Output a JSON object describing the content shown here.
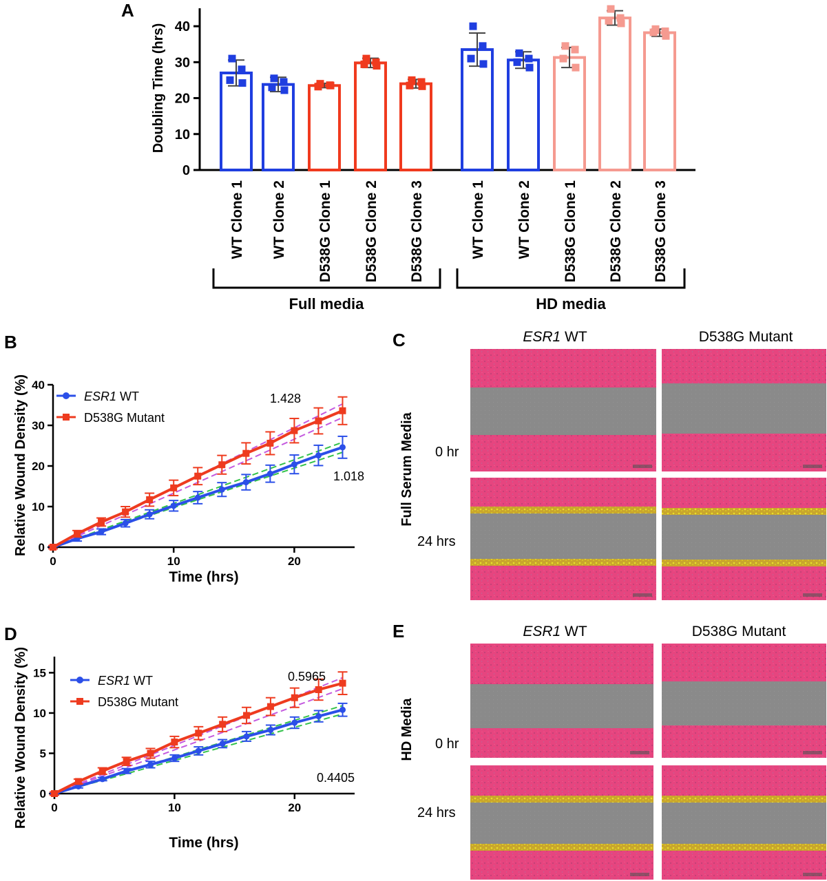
{
  "colors": {
    "wt_full": "#1f3ee0",
    "mut_full": "#f03a1e",
    "wt_hd": "#1f3ee0",
    "mut_hd": "#f59a90",
    "wt_line": "#2b4fe8",
    "mut_line": "#ee3b1f",
    "fit_wt": "#33c24a",
    "fit_mut": "#c45adf",
    "tissue": "#e6457f",
    "gap": "#8a8a8a",
    "edge": "#c8b027"
  },
  "chart_data": [
    {
      "panel": "A",
      "type": "bar",
      "ylabel": "Doubling Time (hrs)",
      "ylim": [
        0,
        45
      ],
      "yticks": [
        0,
        10,
        20,
        30,
        40
      ],
      "categories": [
        "WT Clone 1",
        "WT Clone 2",
        "D538G Clone 1",
        "D538G Clone 2",
        "D538G Clone 3",
        "WT Clone 1",
        "WT Clone 2",
        "D538G Clone 1",
        "D538G Clone 2",
        "D538G Clone 3"
      ],
      "values": [
        27,
        23.8,
        23.5,
        29.8,
        24,
        33.5,
        30.6,
        31.3,
        42.3,
        38.2
      ],
      "errors": [
        3.6,
        2.0,
        0.6,
        1.3,
        1.2,
        4.6,
        2.3,
        2.8,
        2.0,
        1.0
      ],
      "points": [
        [
          31,
          28,
          25,
          24.2
        ],
        [
          25.5,
          24.5,
          23,
          22.2
        ],
        [
          24,
          23.6,
          23.2,
          23.5
        ],
        [
          31,
          30,
          29.4,
          29
        ],
        [
          25,
          24.5,
          23.5,
          23.3
        ],
        [
          40,
          34.5,
          31,
          29.5
        ],
        [
          32.5,
          31,
          30,
          28.5
        ],
        [
          34.5,
          33.5,
          31,
          28.5
        ],
        [
          44.8,
          42.3,
          41.5,
          40.8
        ],
        [
          39.2,
          38.6,
          38.3,
          37.3
        ]
      ],
      "groups": [
        {
          "label": "Full media",
          "range": [
            0,
            4
          ]
        },
        {
          "label": "HD media",
          "range": [
            5,
            9
          ]
        }
      ]
    },
    {
      "panel": "B",
      "type": "line",
      "xlabel": "Time (hrs)",
      "ylabel": "Relative Wound Density (%)",
      "xlim": [
        0,
        25
      ],
      "ylim": [
        0,
        40
      ],
      "xticks": [
        0,
        10,
        20
      ],
      "yticks": [
        0,
        10,
        20,
        30,
        40
      ],
      "x": [
        0,
        2,
        4,
        6,
        8,
        10,
        12,
        14,
        16,
        18,
        20,
        22,
        24
      ],
      "series": [
        {
          "name_prefix": "ESR1",
          "name_suffix": " WT",
          "values": [
            0,
            2.1,
            3.8,
            5.9,
            8.1,
            10.2,
            12.2,
            14.2,
            16.0,
            18.1,
            20.4,
            22.6,
            24.6
          ],
          "errors": [
            0.3,
            0.6,
            0.7,
            0.9,
            1.1,
            1.3,
            1.5,
            1.7,
            1.9,
            2.1,
            2.3,
            2.5,
            2.7
          ],
          "slope_label": "1.018"
        },
        {
          "name": "D538G Mutant",
          "values": [
            0,
            3.3,
            6.2,
            8.7,
            11.7,
            14.6,
            17.5,
            20.3,
            23.1,
            25.6,
            28.7,
            31.1,
            33.6
          ],
          "errors": [
            0.4,
            0.8,
            1.0,
            1.3,
            1.6,
            1.9,
            2.1,
            2.3,
            2.6,
            2.8,
            3.0,
            3.2,
            3.4
          ],
          "slope_label": "1.428"
        }
      ]
    },
    {
      "panel": "D",
      "type": "line",
      "xlabel": "Time (hrs)",
      "ylabel": "Relative Wound Density (%)",
      "xlim": [
        0,
        25
      ],
      "ylim": [
        0,
        17
      ],
      "xticks": [
        0,
        10,
        20
      ],
      "yticks": [
        0,
        5,
        10,
        15
      ],
      "x": [
        0,
        2,
        4,
        6,
        8,
        10,
        12,
        14,
        16,
        18,
        20,
        22,
        24
      ],
      "series": [
        {
          "name_prefix": "ESR1",
          "name_suffix": " WT",
          "values": [
            0,
            0.9,
            1.8,
            2.8,
            3.6,
            4.4,
            5.3,
            6.2,
            7.1,
            7.9,
            8.8,
            9.6,
            10.4
          ],
          "errors": [
            0.1,
            0.2,
            0.2,
            0.3,
            0.4,
            0.4,
            0.5,
            0.5,
            0.6,
            0.6,
            0.7,
            0.7,
            0.8
          ],
          "slope_label": "0.4405"
        },
        {
          "name": "D538G Mutant",
          "values": [
            0,
            1.5,
            2.8,
            4.0,
            5.0,
            6.4,
            7.5,
            8.6,
            9.7,
            10.8,
            11.9,
            12.9,
            13.7
          ],
          "errors": [
            0.2,
            0.3,
            0.4,
            0.5,
            0.6,
            0.7,
            0.8,
            0.9,
            1.0,
            1.1,
            1.2,
            1.3,
            1.4
          ],
          "slope_label": "0.5965"
        }
      ]
    }
  ],
  "panels": {
    "a": {
      "letter": "A"
    },
    "b": {
      "letter": "B"
    },
    "c": {
      "letter": "C",
      "row_title": "Full Serum Media",
      "col1_prefix": "ESR1",
      "col1_suffix": " WT",
      "col2": "D538G Mutant",
      "row1": "0 hr",
      "row2": "24 hrs"
    },
    "d": {
      "letter": "D"
    },
    "e": {
      "letter": "E",
      "row_title": "HD Media",
      "col1_prefix": "ESR1",
      "col1_suffix": " WT",
      "col2": "D538G Mutant",
      "row1": "0 hr",
      "row2": "24 hrs"
    }
  }
}
